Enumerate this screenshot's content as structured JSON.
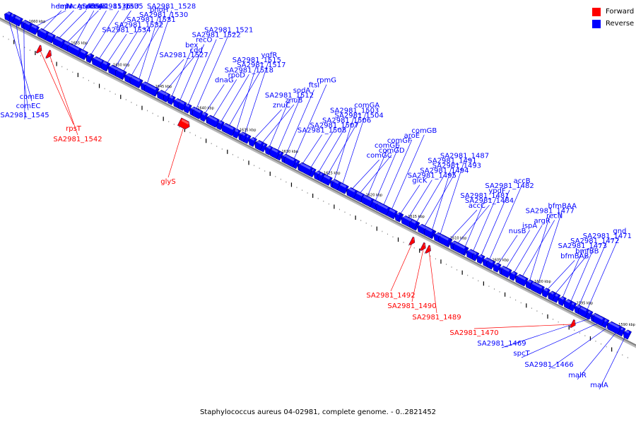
{
  "caption": "Staphylococcus aureus 04-02981, complete genome. - 0..2821452",
  "legend": [
    {
      "label": "Forward",
      "color": "#ff0000"
    },
    {
      "label": "Reverse",
      "color": "#0000ff"
    }
  ],
  "colors": {
    "forward": "#ff0000",
    "reverse": "#0000ff",
    "backbone": "#808080"
  },
  "kbp_ticks": [
    "1660 kbp",
    "1655 kbp",
    "1650 kbp",
    "1645 kbp",
    "1640 kbp",
    "1635 kbp",
    "1630 kbp",
    "1625 kbp",
    "1620 kbp",
    "1615 kbp",
    "1610 kbp",
    "1605 kbp",
    "1600 kbp",
    "1595 kbp",
    "1590 kbp",
    "1585 kbp"
  ],
  "genes": [
    {
      "label": "comEB",
      "strand": "reverse"
    },
    {
      "label": "comEC",
      "strand": "reverse"
    },
    {
      "label": "SA2981_1545",
      "strand": "reverse"
    },
    {
      "label": "lepA",
      "strand": "reverse"
    },
    {
      "label": "hemN",
      "strand": "reverse"
    },
    {
      "label": "hrcA",
      "strand": "reverse"
    },
    {
      "label": "grpE",
      "strand": "reverse"
    },
    {
      "label": "dnaK",
      "strand": "reverse"
    },
    {
      "label": "dnaJ",
      "strand": "reverse"
    },
    {
      "label": "rpsT",
      "strand": "forward"
    },
    {
      "label": "SA2981_1542",
      "strand": "forward"
    },
    {
      "label": "SA2981_1536",
      "strand": "reverse"
    },
    {
      "label": "SA2981_1535",
      "strand": "reverse"
    },
    {
      "label": "rpsU",
      "strand": "reverse"
    },
    {
      "label": "SA2981_1534",
      "strand": "reverse"
    },
    {
      "label": "SA2981_1532",
      "strand": "reverse"
    },
    {
      "label": "SA2981_1531",
      "strand": "reverse"
    },
    {
      "label": "SA2981_1530",
      "strand": "reverse"
    },
    {
      "label": "phoH",
      "strand": "reverse"
    },
    {
      "label": "SA2981_1528",
      "strand": "reverse"
    },
    {
      "label": "SA2981_1527",
      "strand": "reverse"
    },
    {
      "label": "cdd",
      "strand": "reverse"
    },
    {
      "label": "bex",
      "strand": "reverse"
    },
    {
      "label": "recO",
      "strand": "reverse"
    },
    {
      "label": "glyS",
      "strand": "forward"
    },
    {
      "label": "SA2981_1522",
      "strand": "reverse"
    },
    {
      "label": "SA2981_1521",
      "strand": "reverse"
    },
    {
      "label": "dnaG",
      "strand": "reverse"
    },
    {
      "label": "rpoD",
      "strand": "reverse"
    },
    {
      "label": "SA2981_1518",
      "strand": "reverse"
    },
    {
      "label": "SA2981_1517",
      "strand": "reverse"
    },
    {
      "label": "SA2981_1515",
      "strand": "reverse"
    },
    {
      "label": "yqfR",
      "strand": "reverse"
    },
    {
      "label": "znuC",
      "strand": "reverse"
    },
    {
      "label": "znuB",
      "strand": "reverse"
    },
    {
      "label": "SA2981_1512",
      "strand": "reverse"
    },
    {
      "label": "sodA",
      "strand": "reverse"
    },
    {
      "label": "ftsI",
      "strand": "reverse"
    },
    {
      "label": "rpmG",
      "strand": "reverse"
    },
    {
      "label": "SA2981_1508",
      "strand": "reverse"
    },
    {
      "label": "SA2981_1507",
      "strand": "reverse"
    },
    {
      "label": "SA2981_1506",
      "strand": "reverse"
    },
    {
      "label": "SA2981_1504",
      "strand": "reverse"
    },
    {
      "label": "SA2981_1503",
      "strand": "reverse"
    },
    {
      "label": "comGA",
      "strand": "reverse"
    },
    {
      "label": "comGC",
      "strand": "reverse"
    },
    {
      "label": "comGD",
      "strand": "reverse"
    },
    {
      "label": "comGE",
      "strand": "reverse"
    },
    {
      "label": "comGF",
      "strand": "reverse"
    },
    {
      "label": "aroE",
      "strand": "reverse"
    },
    {
      "label": "comGB",
      "strand": "reverse"
    },
    {
      "label": "glcK",
      "strand": "reverse"
    },
    {
      "label": "SA2981_1495",
      "strand": "reverse"
    },
    {
      "label": "SA2981_1494",
      "strand": "reverse"
    },
    {
      "label": "SA2981_1493",
      "strand": "reverse"
    },
    {
      "label": "SA2981_1491",
      "strand": "reverse"
    },
    {
      "label": "SA2981_1492",
      "strand": "forward"
    },
    {
      "label": "SA2981_1490",
      "strand": "forward"
    },
    {
      "label": "SA2981_1489",
      "strand": "forward"
    },
    {
      "label": "SA2981_1487",
      "strand": "reverse"
    },
    {
      "label": "accC",
      "strand": "reverse"
    },
    {
      "label": "SA2981_1484",
      "strand": "reverse"
    },
    {
      "label": "SA2981_1481",
      "strand": "reverse"
    },
    {
      "label": "ypdF",
      "strand": "reverse"
    },
    {
      "label": "SA2981_1482",
      "strand": "reverse"
    },
    {
      "label": "accB",
      "strand": "reverse"
    },
    {
      "label": "nusB",
      "strand": "reverse"
    },
    {
      "label": "ispA",
      "strand": "reverse"
    },
    {
      "label": "argR",
      "strand": "reverse"
    },
    {
      "label": "recN",
      "strand": "reverse"
    },
    {
      "label": "SA2981_1477",
      "strand": "reverse"
    },
    {
      "label": "bfmBAA",
      "strand": "reverse"
    },
    {
      "label": "bfmBAB",
      "strand": "reverse"
    },
    {
      "label": "bmfBB",
      "strand": "reverse"
    },
    {
      "label": "SA2981_1473",
      "strand": "reverse"
    },
    {
      "label": "SA2981_1472",
      "strand": "reverse"
    },
    {
      "label": "SA2981_1471",
      "strand": "reverse"
    },
    {
      "label": "gnd",
      "strand": "reverse"
    },
    {
      "label": "SA2981_1470",
      "strand": "forward"
    },
    {
      "label": "SA2981_1469",
      "strand": "reverse"
    },
    {
      "label": "spcT",
      "strand": "reverse"
    },
    {
      "label": "SA2981_1466",
      "strand": "reverse"
    },
    {
      "label": "malR",
      "strand": "reverse"
    },
    {
      "label": "malA",
      "strand": "reverse"
    }
  ]
}
